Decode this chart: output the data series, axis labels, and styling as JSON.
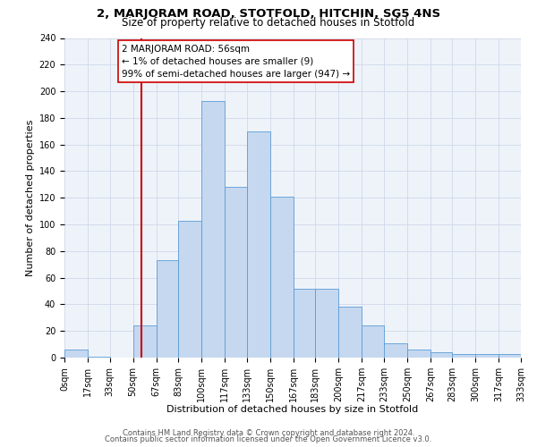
{
  "title": "2, MARJORAM ROAD, STOTFOLD, HITCHIN, SG5 4NS",
  "subtitle": "Size of property relative to detached houses in Stotfold",
  "xlabel": "Distribution of detached houses by size in Stotfold",
  "ylabel": "Number of detached properties",
  "bin_labels": [
    "0sqm",
    "17sqm",
    "33sqm",
    "50sqm",
    "67sqm",
    "83sqm",
    "100sqm",
    "117sqm",
    "133sqm",
    "150sqm",
    "167sqm",
    "183sqm",
    "200sqm",
    "217sqm",
    "233sqm",
    "250sqm",
    "267sqm",
    "283sqm",
    "300sqm",
    "317sqm",
    "333sqm"
  ],
  "bin_edges": [
    0,
    17,
    33,
    50,
    67,
    83,
    100,
    117,
    133,
    150,
    167,
    183,
    200,
    217,
    233,
    250,
    267,
    283,
    300,
    317,
    333
  ],
  "bar_heights": [
    6,
    1,
    0,
    24,
    73,
    103,
    193,
    128,
    170,
    121,
    52,
    52,
    38,
    24,
    11,
    6,
    4,
    3,
    3,
    3,
    0
  ],
  "bar_color": "#c5d8f0",
  "bar_edge_color": "#5b9bd5",
  "vline_x": 56,
  "vline_color": "#cc0000",
  "grid_color": "#d0d8e8",
  "background_color": "#eef3fa",
  "annotation_text": "2 MARJORAM ROAD: 56sqm\n← 1% of detached houses are smaller (9)\n99% of semi-detached houses are larger (947) →",
  "annotation_box_edgecolor": "#cc0000",
  "annotation_box_facecolor": "#ffffff",
  "footer_line1": "Contains HM Land Registry data © Crown copyright and database right 2024.",
  "footer_line2": "Contains public sector information licensed under the Open Government Licence v3.0.",
  "ylim": [
    0,
    240
  ],
  "yticks": [
    0,
    20,
    40,
    60,
    80,
    100,
    120,
    140,
    160,
    180,
    200,
    220,
    240
  ],
  "title_fontsize": 9.5,
  "subtitle_fontsize": 8.5,
  "axis_label_fontsize": 8,
  "tick_fontsize": 7,
  "annotation_fontsize": 7.5,
  "footer_fontsize": 6
}
